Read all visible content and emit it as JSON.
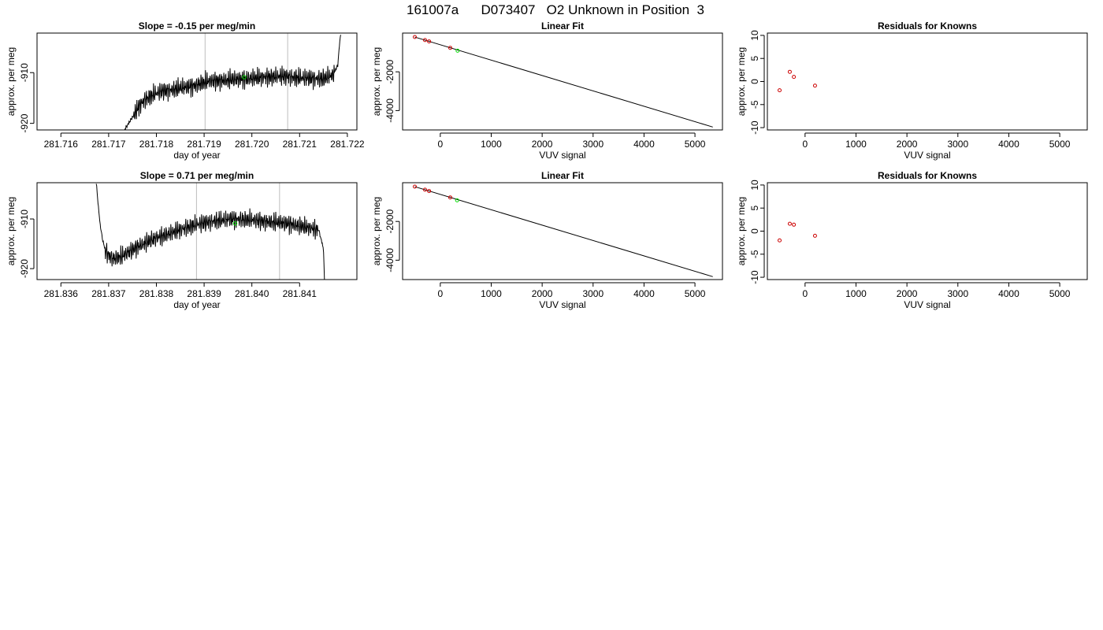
{
  "page": {
    "title": "161007a      D073407   O2 Unknown in Position  3"
  },
  "colors": {
    "known_points": "#cc0000",
    "unknown_point": "#00dd00",
    "line": "#000000",
    "sample_window_lines": "#bdbdbd"
  },
  "chart_data": [
    {
      "id": "row1-timeseries",
      "type": "line",
      "title": "Slope =  -0.15  per meg/min",
      "xlabel": "day of year",
      "ylabel": "approx. per meg",
      "xlim": [
        281.7155,
        281.7222
      ],
      "ylim": [
        -921.3,
        -902.2
      ],
      "xticks": [
        281.716,
        281.717,
        281.718,
        281.719,
        281.72,
        281.721,
        281.722
      ],
      "xtick_labels": [
        "281.716",
        "281.717",
        "281.718",
        "281.719",
        "281.720",
        "281.721",
        "281.722"
      ],
      "yticks": [
        -910,
        -920
      ],
      "ytick_labels": [
        "-910",
        "-920"
      ],
      "vlines": [
        281.71902,
        281.72075
      ],
      "signal_start": 281.71733,
      "signal_end": 281.72186,
      "baseline": -911.2,
      "highlight": {
        "x": 281.71984,
        "y": -910.9
      },
      "series": [
        {
          "x": [
            281.71733,
            281.71745,
            281.71755,
            281.71765,
            281.71775,
            281.71785,
            281.71795,
            281.7181,
            281.7183,
            281.7185,
            281.7187,
            281.7189,
            281.7191,
            281.7194,
            281.7197,
            281.72,
            281.7203,
            281.7206,
            281.7209,
            281.7212,
            281.7215,
            281.7217,
            281.7218,
            281.72183,
            281.72186
          ],
          "y": [
            -921.3,
            -919.5,
            -918.0,
            -916.5,
            -915.4,
            -914.8,
            -914.3,
            -913.7,
            -913.4,
            -913.0,
            -912.8,
            -912.2,
            -911.7,
            -911.5,
            -911.3,
            -911.1,
            -910.9,
            -910.7,
            -910.9,
            -911.1,
            -911.2,
            -910.5,
            -908.5,
            -905.0,
            -902.3
          ]
        }
      ]
    },
    {
      "id": "row1-linear-fit",
      "type": "scatter",
      "title": "Linear Fit",
      "xlabel": "VUV signal",
      "ylabel": "approx. per meg",
      "xlim": [
        -740,
        5540
      ],
      "ylim": [
        -5000,
        0
      ],
      "xticks": [
        0,
        1000,
        2000,
        3000,
        4000,
        5000
      ],
      "yticks": [
        -2000,
        -4000
      ],
      "ytick_labels": [
        "-2000",
        "-4000"
      ],
      "fit_line": [
        [
          -500,
          -205
        ],
        [
          5350,
          -4850
        ]
      ],
      "series": [
        {
          "name": "knowns",
          "x": [
            -500,
            -300,
            -220,
            195
          ],
          "y": [
            -205,
            -360,
            -430,
            -760
          ]
        },
        {
          "name": "unknown",
          "x": [
            340
          ],
          "y": [
            -910
          ]
        }
      ]
    },
    {
      "id": "row1-residuals",
      "type": "scatter",
      "title": "Residuals for Knowns",
      "xlabel": "VUV signal",
      "ylabel": "approx. per meg",
      "xlim": [
        -740,
        5540
      ],
      "ylim": [
        -10.5,
        10.5
      ],
      "xticks": [
        0,
        1000,
        2000,
        3000,
        4000,
        5000
      ],
      "yticks": [
        10,
        5,
        0,
        -5,
        -10
      ],
      "series": [
        {
          "name": "residuals",
          "x": [
            -500,
            -300,
            -220,
            195
          ],
          "y": [
            -1.9,
            2.1,
            1.0,
            -0.9
          ]
        }
      ]
    },
    {
      "id": "row2-timeseries",
      "type": "line",
      "title": "Slope =  0.71  per meg/min",
      "xlabel": "day of year",
      "ylabel": "approx. per meg",
      "xlim": [
        281.8355,
        281.8422
      ],
      "ylim": [
        -922.2,
        -902.7
      ],
      "xticks": [
        281.836,
        281.837,
        281.838,
        281.839,
        281.84,
        281.841
      ],
      "xtick_labels": [
        "281.836",
        "281.837",
        "281.838",
        "281.839",
        "281.840",
        "281.841"
      ],
      "yticks": [
        -910,
        -920
      ],
      "ytick_labels": [
        "-910",
        "-920"
      ],
      "vlines": [
        281.83884,
        281.84058
      ],
      "signal_start": 281.83674,
      "signal_end": 281.84152,
      "baseline": -911.8,
      "highlight": {
        "x": 281.83965,
        "y": -910.9
      },
      "series": [
        {
          "x": [
            281.83674,
            281.83678,
            281.83682,
            281.83687,
            281.83692,
            281.837,
            281.8371,
            281.8373,
            281.8376,
            281.838,
            281.8384,
            281.8388,
            281.8392,
            281.8396,
            281.84,
            281.8404,
            281.8408,
            281.8412,
            281.8414,
            281.8415,
            281.84152
          ],
          "y": [
            -902.7,
            -907.0,
            -911.0,
            -914.0,
            -916.0,
            -917.3,
            -918.0,
            -917.4,
            -915.6,
            -913.8,
            -912.5,
            -911.2,
            -910.4,
            -910.0,
            -910.2,
            -910.6,
            -911.0,
            -911.8,
            -912.2,
            -916.0,
            -922.2
          ]
        }
      ]
    },
    {
      "id": "row2-linear-fit",
      "type": "scatter",
      "title": "Linear Fit",
      "xlabel": "VUV signal",
      "ylabel": "approx. per meg",
      "xlim": [
        -740,
        5540
      ],
      "ylim": [
        -5000,
        0
      ],
      "xticks": [
        0,
        1000,
        2000,
        3000,
        4000,
        5000
      ],
      "yticks": [
        -2000,
        -4000
      ],
      "ytick_labels": [
        "-2000",
        "-4000"
      ],
      "fit_line": [
        [
          -500,
          -205
        ],
        [
          5350,
          -4850
        ]
      ],
      "series": [
        {
          "name": "knowns",
          "x": [
            -500,
            -300,
            -220,
            195
          ],
          "y": [
            -205,
            -360,
            -430,
            -760
          ]
        },
        {
          "name": "unknown",
          "x": [
            330
          ],
          "y": [
            -910
          ]
        }
      ]
    },
    {
      "id": "row2-residuals",
      "type": "scatter",
      "title": "Residuals for Knowns",
      "xlabel": "VUV signal",
      "ylabel": "approx. per meg",
      "xlim": [
        -740,
        5540
      ],
      "ylim": [
        -10.5,
        10.5
      ],
      "xticks": [
        0,
        1000,
        2000,
        3000,
        4000,
        5000
      ],
      "yticks": [
        10,
        5,
        0,
        -5,
        -10
      ],
      "series": [
        {
          "name": "residuals",
          "x": [
            -500,
            -300,
            -220,
            195
          ],
          "y": [
            -2.0,
            1.6,
            1.4,
            -1.0
          ]
        }
      ]
    }
  ]
}
